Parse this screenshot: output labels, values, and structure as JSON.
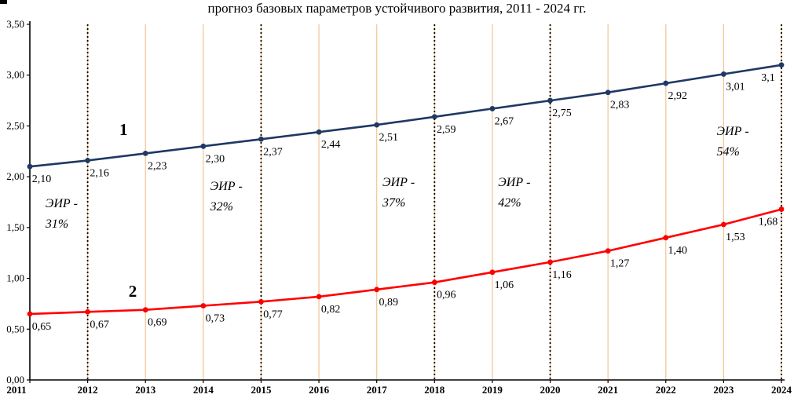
{
  "chart_data": {
    "type": "line",
    "title": "прогноз базовых параметров устойчивого развития, 2011 - 2024 гг.",
    "x": [
      2011,
      2012,
      2013,
      2014,
      2015,
      2016,
      2017,
      2018,
      2019,
      2020,
      2021,
      2022,
      2023,
      2024
    ],
    "x_tick_labels": [
      "2011",
      "2012",
      "2013",
      "2014",
      "2015",
      "2016",
      "2017",
      "2018",
      "2019",
      "2020",
      "2021",
      "2022",
      "2023",
      "2024"
    ],
    "ylim": [
      0,
      3.5
    ],
    "y_tick_step": 0.5,
    "y_tick_labels": [
      "0,00",
      "0,50",
      "1,00",
      "1,50",
      "2,00",
      "2,50",
      "3,00",
      "3,50"
    ],
    "grid": {
      "vertical": true,
      "horizontal": false,
      "color": "#f2c491"
    },
    "dotted_vlines": [
      2012,
      2015,
      2018,
      2020,
      2024
    ],
    "legend_position": "none",
    "series": [
      {
        "name": "1",
        "color": "#1f3864",
        "values": [
          2.1,
          2.16,
          2.23,
          2.3,
          2.37,
          2.44,
          2.51,
          2.59,
          2.67,
          2.75,
          2.83,
          2.92,
          3.01,
          3.1
        ],
        "point_labels": [
          "2,10",
          "2,16",
          "2,23",
          "2,30",
          "2,37",
          "2,44",
          "2,51",
          "2,59",
          "2,67",
          "2,75",
          "2,83",
          "2,92",
          "3,01",
          "3,1"
        ],
        "label_pos": {
          "x_year": 2012.62,
          "y_value": 2.41
        }
      },
      {
        "name": "2",
        "color": "#ff0000",
        "values": [
          0.65,
          0.67,
          0.69,
          0.73,
          0.77,
          0.82,
          0.89,
          0.96,
          1.06,
          1.16,
          1.27,
          1.4,
          1.53,
          1.68
        ],
        "point_labels": [
          "0,65",
          "0,67",
          "0,69",
          "0,73",
          "0,77",
          "0,82",
          "0,89",
          "0,96",
          "1,06",
          "1,16",
          "1,27",
          "1,40",
          "1,53",
          "1,68"
        ],
        "label_pos": {
          "x_year": 2012.78,
          "y_value": 0.82
        }
      }
    ],
    "annotations": [
      {
        "lines": [
          "ЭИР -",
          "31%"
        ],
        "x_year": 2011.27,
        "y_value": 1.7
      },
      {
        "lines": [
          "ЭИР -",
          "32%"
        ],
        "x_year": 2014.12,
        "y_value": 1.87
      },
      {
        "lines": [
          "ЭИР -",
          "37%"
        ],
        "x_year": 2017.1,
        "y_value": 1.91
      },
      {
        "lines": [
          "ЭИР -",
          "42%"
        ],
        "x_year": 2019.1,
        "y_value": 1.91
      },
      {
        "lines": [
          "ЭИР -",
          "54%"
        ],
        "x_year": 2022.88,
        "y_value": 2.41
      }
    ]
  }
}
